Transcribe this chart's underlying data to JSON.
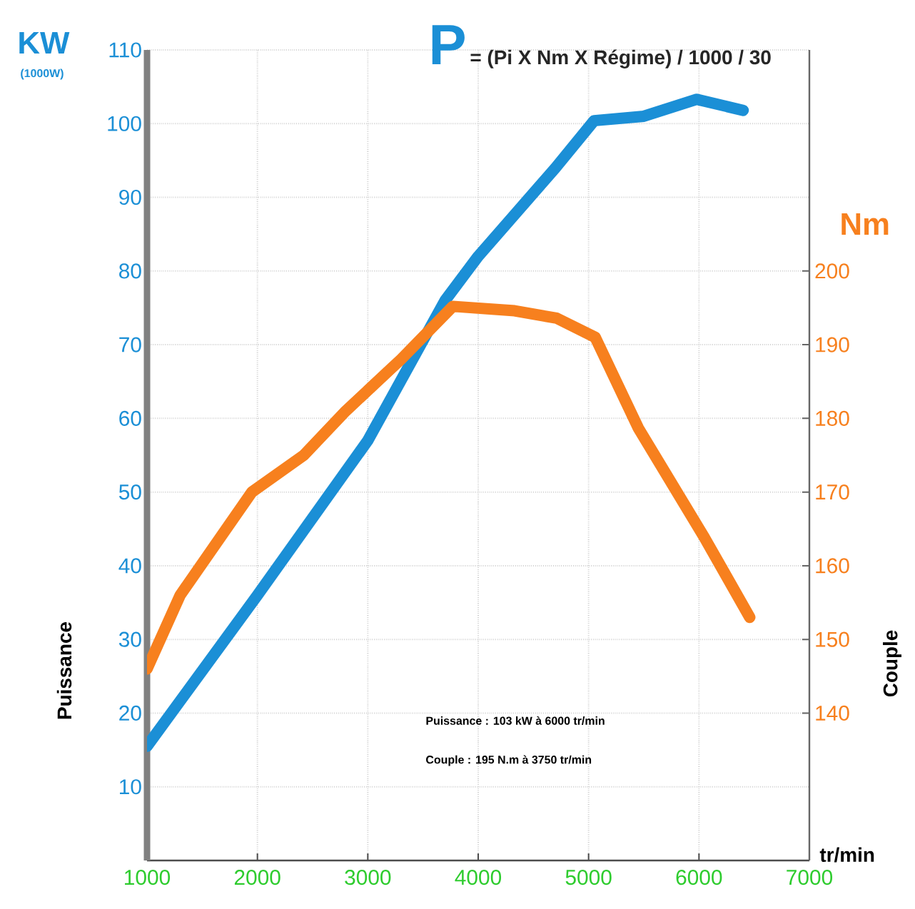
{
  "chart_data": {
    "type": "line",
    "title": "P",
    "subtitle": "= (Pi X Nm X Régime) / 1000 / 30",
    "xlabel": "tr/min",
    "ylabel": "Puissance",
    "y2label": "Couple",
    "annotations": [
      "KW",
      "(1000W)",
      "Nm",
      "Puissance : 103 kW à 6000 tr/min",
      "Couple : 195 N.m à 3750 tr/min"
    ],
    "series": [
      {
        "color": "#1b8fd6",
        "x": [
          1000,
          2000,
          3000,
          3700,
          4000,
          4350,
          4700,
          5050,
          5500,
          5980,
          6400
        ],
        "values": [
          15.5,
          36,
          57,
          76,
          82,
          88,
          94,
          100.4,
          101,
          103.3,
          101.8
        ]
      },
      {
        "color": "#f7801e",
        "axis": "y2",
        "x": [
          1000,
          1300,
          1950,
          2420,
          2800,
          3300,
          3770,
          4330,
          4710,
          5060,
          5450,
          6050,
          6460
        ],
        "values": [
          146,
          156,
          170,
          175,
          181,
          188,
          195.2,
          194.6,
          193.6,
          191,
          178.7,
          163.8,
          153
        ]
      }
    ],
    "xlim": [
      1000,
      7000
    ],
    "xticks": [
      1000,
      2000,
      3000,
      4000,
      5000,
      6000,
      7000
    ],
    "ylim": [
      0,
      110
    ],
    "yticks": [
      10,
      20,
      30,
      40,
      50,
      60,
      70,
      80,
      90,
      100,
      110
    ],
    "y2lim": [
      120,
      230
    ],
    "y2ticks": [
      140,
      150,
      160,
      170,
      180,
      190,
      200
    ],
    "grid": true
  }
}
